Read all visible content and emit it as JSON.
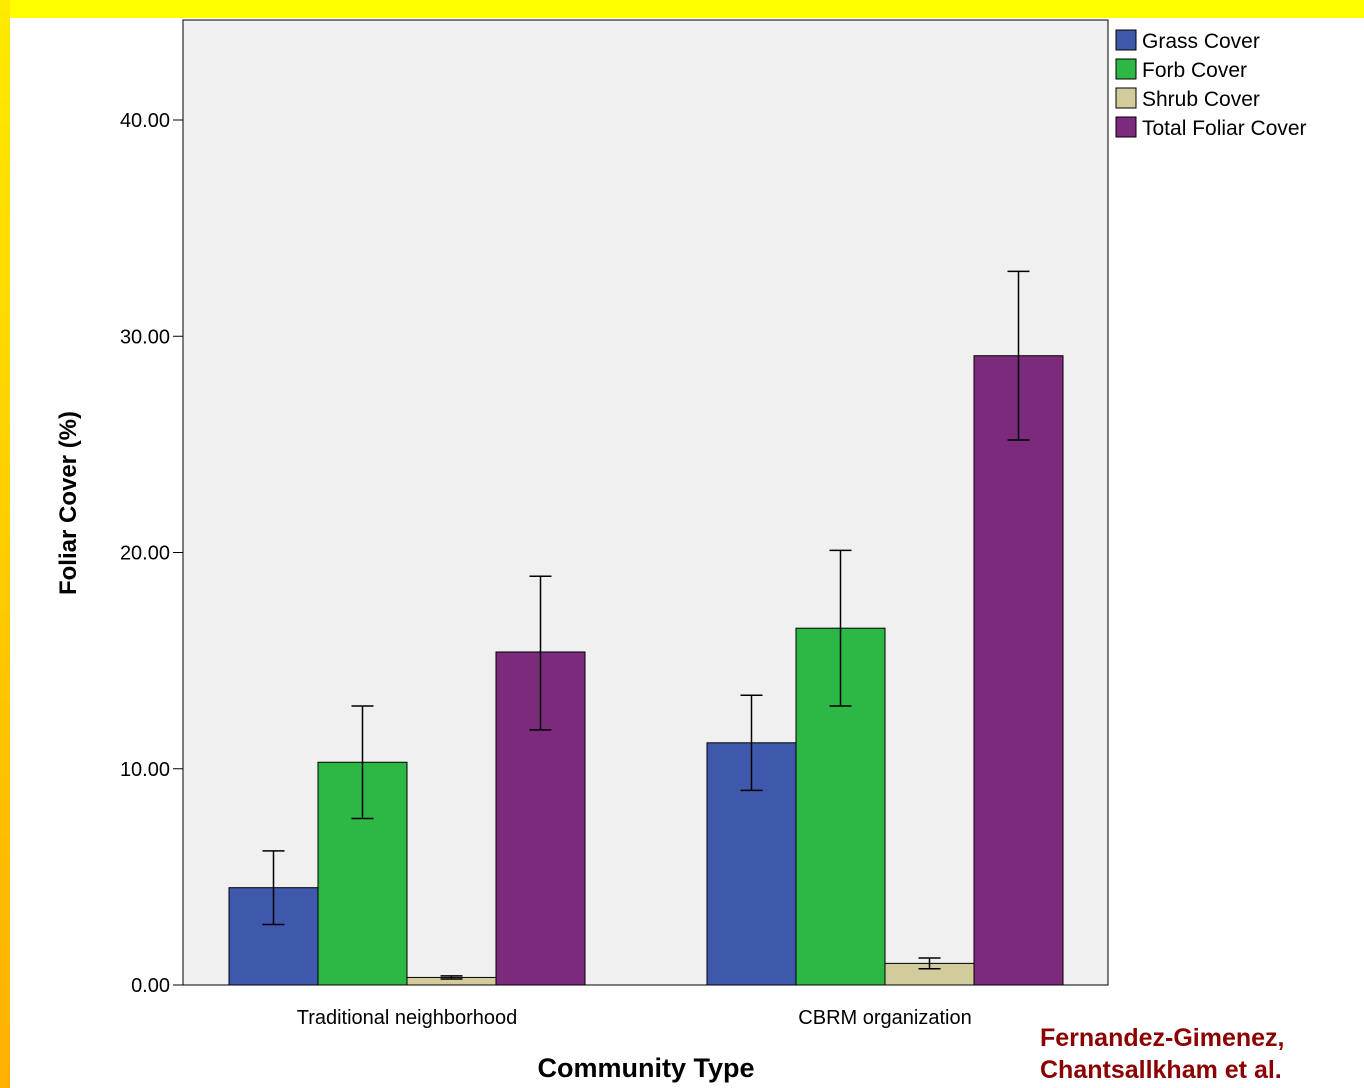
{
  "colors": {
    "frame_top": "#ffff00",
    "frame_left_top": "#ffea00",
    "frame_left_bottom": "#ffb000",
    "plot_bg": "#f0f0f0",
    "citation": "#8b0000"
  },
  "chart_data": {
    "type": "bar",
    "title": "",
    "xlabel": "Community Type",
    "ylabel": "Foliar Cover (%)",
    "ylim": [
      0,
      44
    ],
    "yticks": [
      "0.00",
      "10.00",
      "20.00",
      "30.00",
      "40.00"
    ],
    "categories": [
      "Traditional neighborhood",
      "CBRM organization"
    ],
    "series": [
      {
        "name": "Grass Cover",
        "color": "#3e58ac",
        "values": [
          4.5,
          11.2
        ],
        "error_low": [
          2.8,
          9.0
        ],
        "error_high": [
          6.2,
          13.4
        ]
      },
      {
        "name": "Forb Cover",
        "color": "#2db745",
        "values": [
          10.3,
          16.5
        ],
        "error_low": [
          7.7,
          12.9
        ],
        "error_high": [
          12.9,
          20.1
        ]
      },
      {
        "name": "Shrub Cover",
        "color": "#d2cb9c",
        "values": [
          0.35,
          1.0
        ],
        "error_low": [
          0.28,
          0.75
        ],
        "error_high": [
          0.42,
          1.25
        ]
      },
      {
        "name": "Total Foliar Cover",
        "color": "#7b2a7c",
        "values": [
          15.4,
          29.1
        ],
        "error_low": [
          11.8,
          25.2
        ],
        "error_high": [
          18.9,
          33.0
        ]
      }
    ],
    "legend_position": "top-right",
    "grid": false
  },
  "citation": {
    "line1": "Fernandez-Gimenez,",
    "line2": "Chantsallkham et al."
  }
}
